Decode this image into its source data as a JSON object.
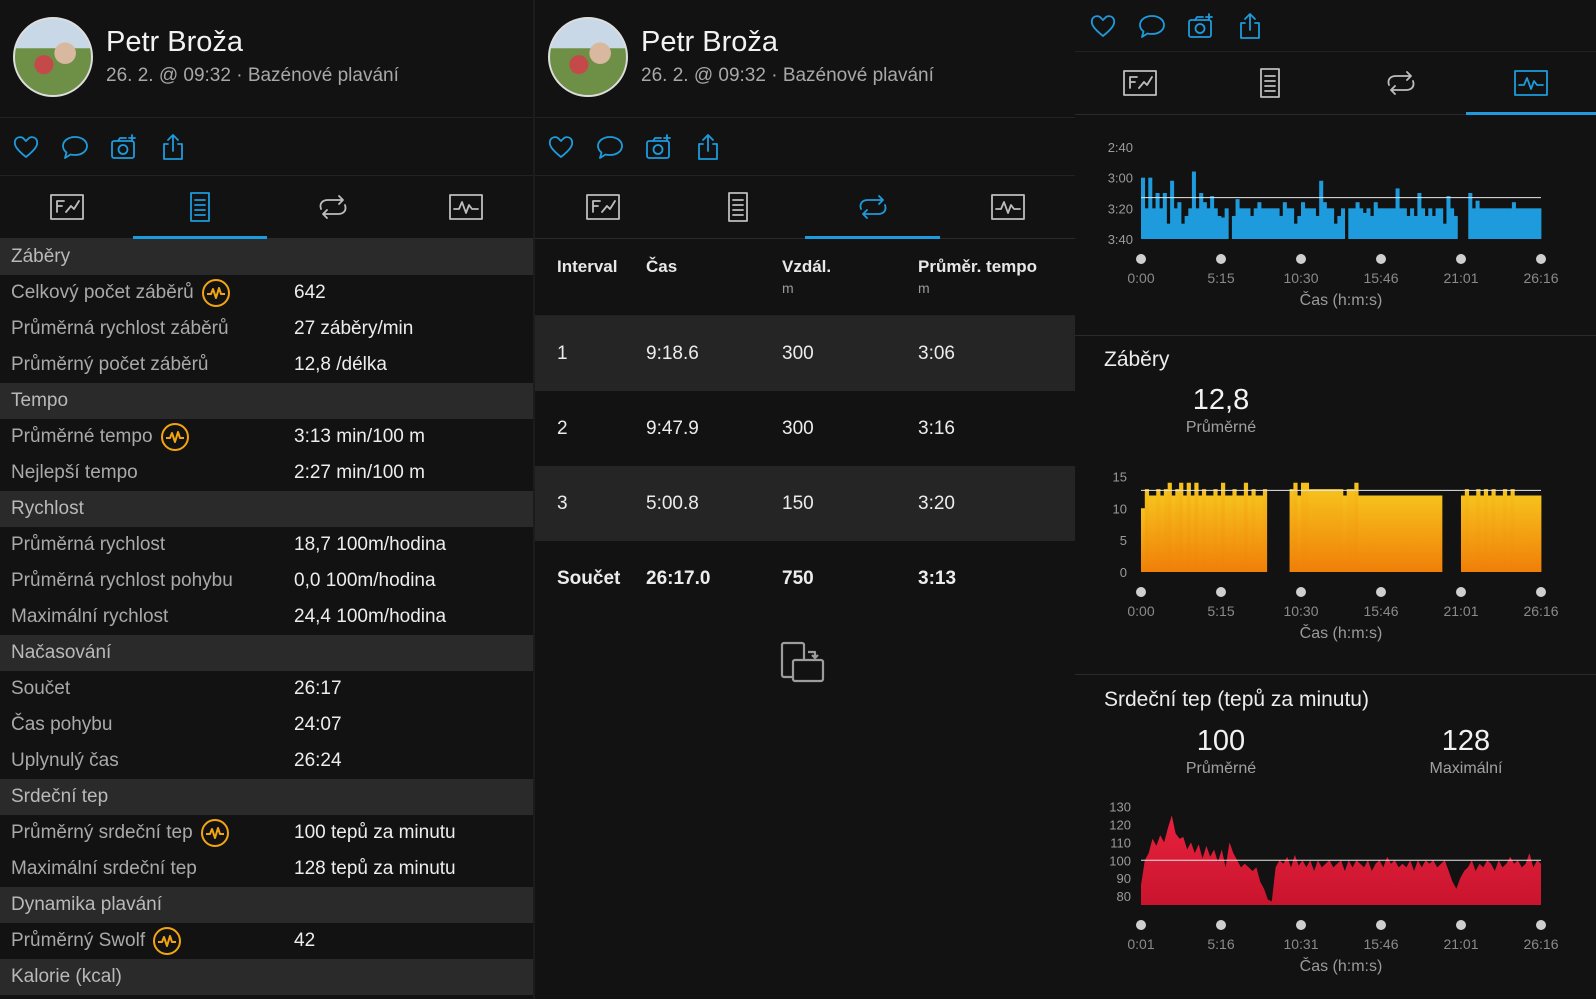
{
  "profile": {
    "name": "Petr Broža",
    "meta": "26. 2. @ 09:32 · Bazénové plavání"
  },
  "icons": {
    "like": "heart-icon",
    "comment": "comment-icon",
    "photo": "camera-plus-icon",
    "share": "share-icon",
    "tab_overview": "overview-icon",
    "tab_stats": "document-icon",
    "tab_laps": "laps-icon",
    "tab_charts": "chart-icon",
    "performance": "performance-badge-icon",
    "device_sync": "devices-icon"
  },
  "colors": {
    "accent": "#1e9bdc",
    "badge": "#f3a411",
    "pace": "#1e9bdc",
    "strokes": "#f5a00c",
    "hr": "#d81e3c"
  },
  "stats": {
    "sections": [
      {
        "title": "Záběry",
        "rows": [
          {
            "label": "Celkový počet záběrů",
            "value": "642",
            "badge": true
          },
          {
            "label": "Průměrná rychlost záběrů",
            "value": "27 záběry/min"
          },
          {
            "label": "Průměrný počet záběrů",
            "value": "12,8 /délka"
          }
        ]
      },
      {
        "title": "Tempo",
        "rows": [
          {
            "label": "Průměrné tempo",
            "value": "3:13 min/100 m",
            "badge": true
          },
          {
            "label": "Nejlepší tempo",
            "value": "2:27 min/100 m"
          }
        ]
      },
      {
        "title": "Rychlost",
        "rows": [
          {
            "label": "Průměrná rychlost",
            "value": "18,7 100m/hodina"
          },
          {
            "label": "Průměrná rychlost pohybu",
            "value": "0,0 100m/hodina"
          },
          {
            "label": "Maximální rychlost",
            "value": "24,4 100m/hodina"
          }
        ]
      },
      {
        "title": "Načasování",
        "rows": [
          {
            "label": "Součet",
            "value": "26:17"
          },
          {
            "label": "Čas pohybu",
            "value": "24:07"
          },
          {
            "label": "Uplynulý čas",
            "value": "26:24"
          }
        ]
      },
      {
        "title": "Srdeční tep",
        "rows": [
          {
            "label": "Průměrný srdeční tep",
            "value": "100 tepů za minutu",
            "badge": true
          },
          {
            "label": "Maximální srdeční tep",
            "value": "128 tepů za minutu"
          }
        ]
      },
      {
        "title": "Dynamika plavání",
        "rows": [
          {
            "label": "Průměrný Swolf",
            "value": "42",
            "badge": true
          }
        ]
      },
      {
        "title": "Kalorie (kcal)",
        "rows": []
      }
    ]
  },
  "laps": {
    "headers": {
      "interval": "Interval",
      "time": "Čas",
      "distance": "Vzdál.",
      "distance_unit": "m",
      "pace": "Průměr. tempo",
      "pace_unit": "m"
    },
    "rows": [
      {
        "interval": "1",
        "time": "9:18.6",
        "distance": "300",
        "pace": "3:06"
      },
      {
        "interval": "2",
        "time": "9:47.9",
        "distance": "300",
        "pace": "3:16"
      },
      {
        "interval": "3",
        "time": "5:00.8",
        "distance": "150",
        "pace": "3:20"
      }
    ],
    "total": {
      "interval": "Součet",
      "time": "26:17.0",
      "distance": "750",
      "pace": "3:13"
    }
  },
  "charts_panel": {
    "strokes_title": "Záběry",
    "strokes_avg_value": "12,8",
    "strokes_avg_label": "Průměrné",
    "hr_title": "Srdeční tep (tepů za minutu)",
    "hr_avg_value": "100",
    "hr_avg_label": "Průměrné",
    "hr_max_value": "128",
    "hr_max_label": "Maximální"
  },
  "chart_data": [
    {
      "type": "bar",
      "title": "",
      "xlabel": "Čas (h:m:s)",
      "ylabel": "",
      "y_ticks": [
        "2:40",
        "3:00",
        "3:20",
        "3:40"
      ],
      "x_ticks": [
        "0:00",
        "5:15",
        "10:30",
        "15:46",
        "21:01",
        "26:16"
      ],
      "ylim_seconds": [
        160,
        220
      ],
      "avg_line_seconds": 193,
      "values": [
        180,
        200,
        180,
        200,
        190,
        200,
        190,
        210,
        182,
        200,
        196,
        210,
        205,
        200,
        176,
        200,
        190,
        196,
        200,
        192,
        200,
        205,
        206,
        200,
        220,
        205,
        194,
        200,
        200,
        200,
        205,
        200,
        196,
        200,
        200,
        200,
        200,
        200,
        205,
        196,
        200,
        200,
        210,
        205,
        196,
        200,
        200,
        200,
        205,
        182,
        196,
        200,
        200,
        210,
        205,
        200,
        220,
        200,
        200,
        196,
        200,
        203,
        200,
        205,
        196,
        200,
        200,
        200,
        200,
        200,
        187,
        200,
        200,
        205,
        200,
        205,
        190,
        200,
        205,
        200,
        205,
        200,
        200,
        210,
        192,
        200,
        205,
        220,
        220,
        220,
        190,
        200,
        195,
        200,
        200,
        200,
        200,
        200,
        200,
        200,
        200,
        200,
        196,
        200,
        200,
        200,
        200,
        200,
        200,
        200
      ],
      "series": [
        {
          "name": "",
          "values": []
        }
      ]
    },
    {
      "type": "bar",
      "title": "Záběry",
      "xlabel": "Čas (h:m:s)",
      "ylabel": "",
      "x_ticks": [
        "0:00",
        "5:15",
        "10:30",
        "15:46",
        "21:01",
        "26:16"
      ],
      "y_ticks": [
        0,
        5,
        10,
        15
      ],
      "ylim": [
        0,
        16
      ],
      "avg_line": 12.8,
      "values": [
        10,
        13,
        12,
        12,
        13,
        12,
        13,
        14,
        12,
        13,
        14,
        12,
        14,
        12,
        14,
        12,
        13,
        12,
        12,
        13,
        12,
        14,
        12,
        12,
        13,
        12,
        12,
        14,
        12,
        13,
        12,
        12,
        13,
        0,
        0,
        0,
        0,
        0,
        0,
        13,
        14,
        12,
        14,
        14,
        13,
        13,
        13,
        13,
        13,
        13,
        13,
        13,
        13,
        12,
        13,
        13,
        14,
        12,
        12,
        12,
        12,
        12,
        12,
        12,
        12,
        12,
        12,
        12,
        12,
        12,
        12,
        12,
        12,
        12,
        12,
        12,
        12,
        12,
        12,
        0,
        0,
        0,
        0,
        0,
        12,
        13,
        12,
        12,
        13,
        12,
        13,
        12,
        13,
        12,
        12,
        13,
        12,
        13,
        12,
        12,
        12,
        12,
        12,
        12,
        12
      ],
      "series": [
        {
          "name": "",
          "values": []
        }
      ]
    },
    {
      "type": "area",
      "title": "Srdeční tep (tepů za minutu)",
      "xlabel": "Čas (h:m:s)",
      "ylabel": "",
      "x_ticks": [
        "0:01",
        "5:16",
        "10:31",
        "15:46",
        "21:01",
        "26:16"
      ],
      "y_ticks": [
        80,
        90,
        100,
        110,
        120,
        130
      ],
      "ylim": [
        75,
        132
      ],
      "avg_line": 100,
      "values": [
        86,
        100,
        104,
        112,
        108,
        114,
        110,
        118,
        125,
        115,
        112,
        113,
        106,
        110,
        104,
        109,
        101,
        108,
        102,
        106,
        99,
        106,
        96,
        110,
        104,
        100,
        96,
        98,
        96,
        94,
        96,
        88,
        84,
        78,
        77,
        96,
        100,
        98,
        102,
        96,
        103,
        97,
        100,
        96,
        100,
        94,
        100,
        96,
        98,
        100,
        96,
        98,
        100,
        94,
        100,
        96,
        100,
        98,
        96,
        100,
        94,
        98,
        100,
        96,
        102,
        98,
        100,
        96,
        98,
        96,
        100,
        94,
        100,
        96,
        100,
        98,
        100,
        96,
        98,
        100,
        94,
        88,
        84,
        90,
        94,
        96,
        100,
        94,
        98,
        96,
        100,
        98,
        94,
        100,
        96,
        98,
        102,
        98,
        100,
        96,
        98,
        104,
        96,
        100,
        98
      ]
    }
  ]
}
